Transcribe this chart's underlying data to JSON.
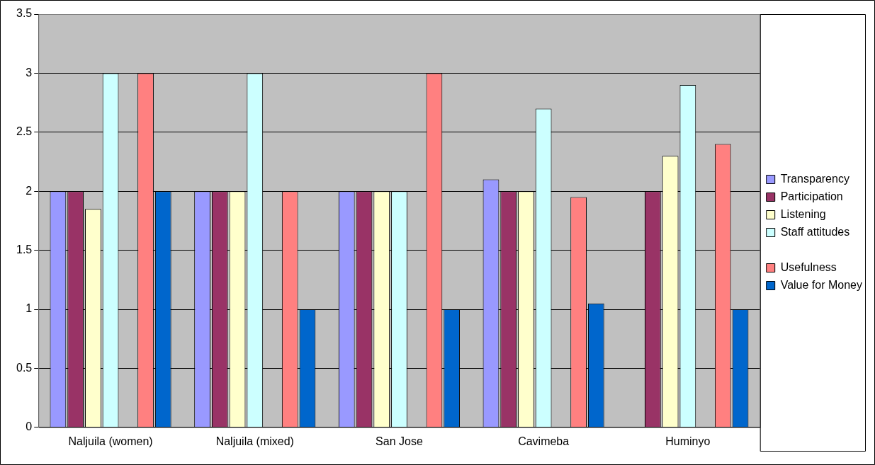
{
  "chart_data": {
    "type": "bar",
    "categories": [
      "Naljuila (women)",
      "Naljuila (mixed)",
      "San Jose",
      "Cavimeba",
      "Huminyo"
    ],
    "series": [
      {
        "name": "Transparency",
        "color": "#9999ff",
        "values": [
          2,
          2,
          2,
          2.1,
          null
        ]
      },
      {
        "name": "Participation",
        "color": "#993366",
        "values": [
          2,
          2,
          2,
          2,
          2
        ]
      },
      {
        "name": "Listening",
        "color": "#ffffcc",
        "values": [
          1.85,
          2,
          2,
          2,
          2.3
        ]
      },
      {
        "name": "Staff attitudes",
        "color": "#ccffff",
        "values": [
          3,
          3,
          2,
          2.7,
          2.9
        ]
      },
      {
        "color": "#c0c0c0",
        "values": [
          null,
          null,
          null,
          null,
          null
        ]
      },
      {
        "name": "Usefulness",
        "color": "#ff8080",
        "values": [
          3,
          2,
          3,
          1.95,
          2.4
        ]
      },
      {
        "name": "Value for Money",
        "color": "#0066cc",
        "values": [
          2,
          1,
          1,
          1.05,
          1
        ]
      }
    ],
    "ylim": [
      0,
      3.5
    ],
    "yticks": [
      0,
      0.5,
      1,
      1.5,
      2,
      2.5,
      3,
      3.5
    ],
    "grid": "y",
    "legend": "right"
  }
}
